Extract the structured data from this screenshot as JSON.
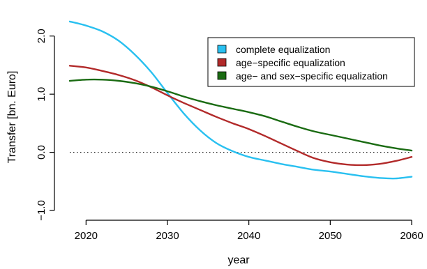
{
  "chart_data": {
    "type": "line",
    "title": "",
    "xlabel": "year",
    "ylabel": "Transfer [bn. Euro]",
    "xlim": [
      2018,
      2060
    ],
    "ylim": [
      -1.0,
      2.5
    ],
    "x_ticks": [
      2020,
      2030,
      2040,
      2050,
      2060
    ],
    "x_tick_labels": [
      "2020",
      "2030",
      "2040",
      "2050",
      "2060"
    ],
    "y_ticks": [
      -1.0,
      0.0,
      1.0,
      2.0
    ],
    "y_tick_labels": [
      "−1.0",
      "0.0",
      "1.0",
      "2.0"
    ],
    "reference_line": {
      "y": 0.0,
      "style": "dotted"
    },
    "legend": {
      "position": "top-right",
      "entries": [
        "complete equalization",
        "age−specific equalization",
        "age− and sex−specific equalization"
      ]
    },
    "grid": false,
    "series": [
      {
        "name": "complete equalization",
        "color": "#29c0f0",
        "x": [
          2018,
          2020,
          2022,
          2024,
          2026,
          2028,
          2030,
          2032,
          2034,
          2036,
          2038,
          2040,
          2042,
          2044,
          2046,
          2048,
          2050,
          2052,
          2054,
          2056,
          2058,
          2060
        ],
        "y": [
          2.25,
          2.18,
          2.08,
          1.92,
          1.68,
          1.38,
          1.02,
          0.67,
          0.38,
          0.16,
          0.02,
          -0.08,
          -0.14,
          -0.2,
          -0.25,
          -0.3,
          -0.33,
          -0.37,
          -0.41,
          -0.44,
          -0.45,
          -0.42
        ]
      },
      {
        "name": "age−specific equalization",
        "color": "#b22a2a",
        "x": [
          2018,
          2020,
          2022,
          2024,
          2026,
          2028,
          2030,
          2032,
          2034,
          2036,
          2038,
          2040,
          2042,
          2044,
          2046,
          2048,
          2050,
          2052,
          2054,
          2056,
          2058,
          2060
        ],
        "y": [
          1.49,
          1.46,
          1.4,
          1.33,
          1.24,
          1.12,
          0.98,
          0.85,
          0.73,
          0.61,
          0.5,
          0.4,
          0.28,
          0.15,
          0.02,
          -0.1,
          -0.17,
          -0.21,
          -0.22,
          -0.2,
          -0.15,
          -0.08
        ]
      },
      {
        "name": "age− and sex−specific equalization",
        "color": "#1a6b12",
        "x": [
          2018,
          2020,
          2022,
          2024,
          2026,
          2028,
          2030,
          2032,
          2034,
          2036,
          2038,
          2040,
          2042,
          2044,
          2046,
          2048,
          2050,
          2052,
          2054,
          2056,
          2058,
          2060
        ],
        "y": [
          1.23,
          1.25,
          1.25,
          1.23,
          1.19,
          1.13,
          1.05,
          0.96,
          0.88,
          0.81,
          0.75,
          0.69,
          0.62,
          0.53,
          0.44,
          0.36,
          0.3,
          0.24,
          0.18,
          0.12,
          0.07,
          0.03
        ]
      }
    ]
  }
}
